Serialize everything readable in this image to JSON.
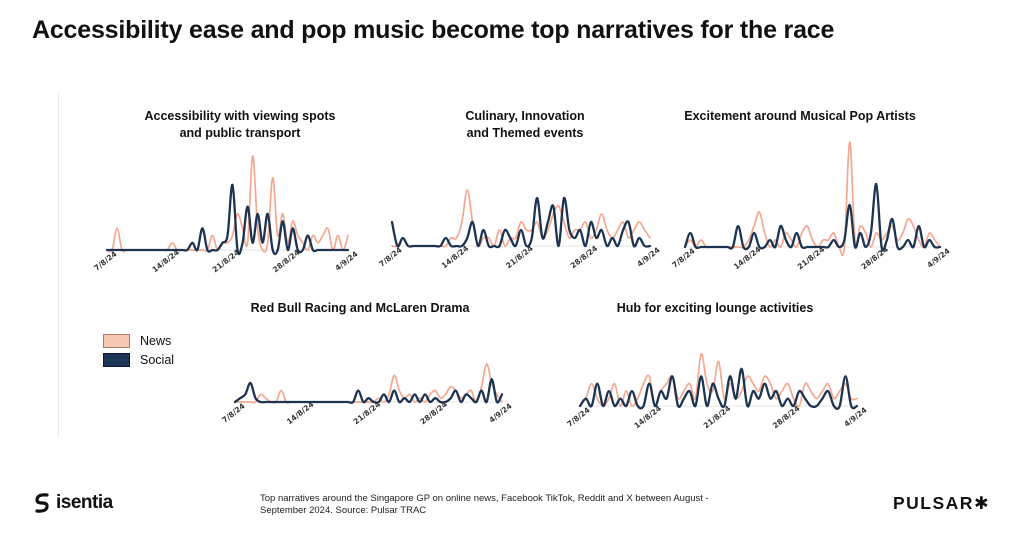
{
  "title": "Accessibility ease and pop music become top narratives for the race",
  "legend": {
    "news": "News",
    "social": "Social"
  },
  "colors": {
    "news": "#f4a88f",
    "social": "#1c3352",
    "swatch_news": "#f6c8b4",
    "swatch_social": "#1d3556"
  },
  "footer": {
    "isentia": "isentia",
    "footnote": "Top narratives around the Singapore GP on online news, Facebook TikTok, Reddit  and X between August - September 2024. Source: Pulsar TRAC",
    "pulsar": "PULSAR✱"
  },
  "chart_data": [
    {
      "type": "line",
      "title_lines": [
        "Accessibility with viewing spots",
        "and public transport"
      ],
      "x_ticks": [
        "7/8/24",
        "14/8/24",
        "21/8/24",
        "28/8/24",
        "4/9/24"
      ],
      "series": [
        {
          "name": "News",
          "values": [
            0,
            0,
            3,
            0,
            0,
            0,
            0,
            0,
            0,
            0,
            0,
            0,
            0,
            1,
            0,
            0,
            0,
            0,
            0,
            0,
            0,
            2,
            0,
            1,
            1,
            2,
            5,
            3,
            1,
            13,
            3,
            0,
            1,
            10,
            2,
            5,
            1,
            4,
            2,
            1,
            0,
            2,
            1,
            2,
            3,
            0,
            2,
            0,
            2
          ]
        },
        {
          "name": "Social",
          "values": [
            0,
            0,
            0,
            0,
            0,
            0,
            0,
            0,
            0,
            0,
            0,
            0,
            0,
            0,
            0,
            0,
            0,
            1,
            0,
            3,
            0,
            0,
            0,
            1,
            2,
            9,
            0,
            1,
            6,
            1,
            5,
            1,
            5,
            0,
            0,
            4,
            0,
            3,
            0,
            0,
            2,
            0,
            0,
            0,
            0,
            0,
            0,
            0,
            0
          ]
        }
      ]
    },
    {
      "type": "line",
      "title_lines": [
        "Culinary, Innovation",
        "and Themed events"
      ],
      "x_ticks": [
        "7/8/24",
        "14/8/24",
        "21/8/24",
        "28/8/24",
        "4/9/24"
      ],
      "series": [
        {
          "name": "News",
          "values": [
            0,
            0,
            1,
            0,
            0,
            0,
            0,
            0,
            0,
            0,
            0,
            1,
            1,
            3,
            7,
            3,
            0,
            1,
            1,
            0,
            2,
            0,
            1,
            1,
            3,
            2,
            2,
            3,
            1,
            2,
            4,
            5,
            3,
            1,
            2,
            2,
            3,
            1,
            2,
            4,
            2,
            1,
            2,
            3,
            1,
            2,
            3,
            2,
            1
          ]
        },
        {
          "name": "Social",
          "values": [
            3,
            0,
            1,
            0,
            0,
            0,
            0,
            0,
            0,
            0,
            1,
            0,
            0,
            0,
            1,
            3,
            0,
            2,
            0,
            0,
            0,
            2,
            1,
            0,
            2,
            0,
            1,
            6,
            1,
            3,
            5,
            0,
            6,
            2,
            1,
            2,
            0,
            3,
            1,
            2,
            0,
            1,
            0,
            2,
            3,
            0,
            1,
            0,
            0
          ]
        }
      ]
    },
    {
      "type": "line",
      "title_lines": [
        "Excitement around Musical Pop Artists"
      ],
      "x_ticks": [
        "7/8/24",
        "14/8/24",
        "21/8/24",
        "28/8/24",
        "4/9/24"
      ],
      "series": [
        {
          "name": "News",
          "values": [
            0,
            1,
            0,
            1,
            0,
            0,
            0,
            0,
            0,
            0,
            0,
            0,
            1,
            3,
            5,
            2,
            0,
            1,
            0,
            2,
            1,
            0,
            2,
            3,
            1,
            0,
            1,
            1,
            2,
            0,
            0,
            15,
            1,
            3,
            2,
            0,
            2,
            1,
            2,
            3,
            1,
            2,
            4,
            3,
            1,
            0,
            2,
            1,
            0
          ]
        },
        {
          "name": "Social",
          "values": [
            0,
            2,
            0,
            0,
            0,
            0,
            0,
            0,
            0,
            0,
            3,
            0,
            0,
            2,
            0,
            0,
            1,
            0,
            3,
            1,
            0,
            2,
            0,
            0,
            0,
            0,
            0,
            0,
            1,
            0,
            1,
            6,
            0,
            2,
            0,
            2,
            9,
            0,
            1,
            4,
            0,
            0,
            1,
            0,
            3,
            0,
            1,
            0,
            0
          ]
        }
      ]
    },
    {
      "type": "line",
      "title_lines": [
        "Red Bull Racing and McLaren Drama"
      ],
      "x_ticks": [
        "7/8/24",
        "14/8/24",
        "21/8/24",
        "28/8/24",
        "4/9/24"
      ],
      "series": [
        {
          "name": "News",
          "values": [
            0,
            0,
            0,
            0,
            0,
            2,
            1,
            0,
            0,
            3,
            0,
            0,
            0,
            0,
            0,
            0,
            0,
            0,
            0,
            0,
            0,
            0,
            0,
            0,
            0,
            0,
            0,
            0,
            1,
            0,
            2,
            7,
            3,
            1,
            2,
            0,
            1,
            0,
            2,
            3,
            1,
            2,
            4,
            3,
            1,
            2,
            3,
            0,
            4,
            10,
            5,
            2,
            0
          ]
        },
        {
          "name": "Social",
          "values": [
            0,
            1,
            2,
            5,
            1,
            0,
            0,
            0,
            0,
            0,
            0,
            0,
            0,
            0,
            0,
            0,
            0,
            0,
            0,
            0,
            0,
            0,
            0,
            0,
            3,
            0,
            1,
            0,
            0,
            2,
            0,
            3,
            0,
            1,
            0,
            2,
            0,
            2,
            0,
            1,
            0,
            0,
            1,
            3,
            0,
            2,
            1,
            0,
            3,
            0,
            6,
            0,
            2
          ]
        }
      ]
    },
    {
      "type": "line",
      "title_lines": [
        "Hub for exciting lounge activities"
      ],
      "x_ticks": [
        "7/8/24",
        "14/8/24",
        "21/8/24",
        "28/8/24",
        "4/9/24"
      ],
      "series": [
        {
          "name": "News",
          "values": [
            0,
            1,
            3,
            1,
            0,
            1,
            3,
            0,
            2,
            0,
            1,
            3,
            4,
            0,
            2,
            3,
            4,
            1,
            2,
            3,
            1,
            7,
            3,
            2,
            6,
            1,
            3,
            1,
            2,
            4,
            3,
            2,
            4,
            3,
            1,
            2,
            3,
            1,
            0,
            3,
            2,
            1,
            2,
            3,
            1,
            2,
            3,
            1,
            1
          ]
        },
        {
          "name": "Social",
          "values": [
            0,
            1,
            0,
            3,
            0,
            2,
            0,
            1,
            0,
            2,
            0,
            0,
            3,
            0,
            2,
            1,
            4,
            0,
            1,
            2,
            0,
            4,
            0,
            3,
            1,
            0,
            4,
            1,
            5,
            0,
            2,
            1,
            3,
            1,
            2,
            0,
            1,
            0,
            2,
            1,
            0,
            0,
            1,
            2,
            0,
            0,
            4,
            0,
            0
          ]
        }
      ]
    }
  ]
}
